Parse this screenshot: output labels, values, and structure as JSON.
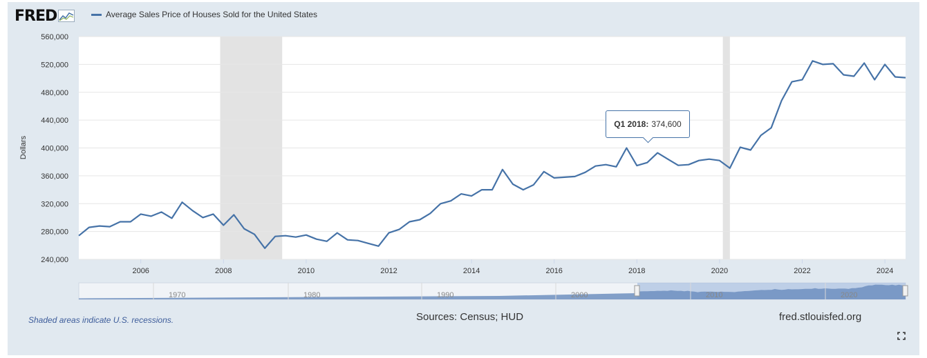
{
  "brand": {
    "logo_text": "FRED"
  },
  "legend": {
    "series_name": "Average Sales Price of Houses Sold for the United States"
  },
  "tooltip": {
    "date": "Q1 2018:",
    "value": "374,600"
  },
  "footer": {
    "recession_note": "Shaded areas indicate U.S. recessions.",
    "sources": "Sources: Census; HUD",
    "site": "fred.stlouisfed.org"
  },
  "navigator": {
    "ticks": [
      "1970",
      "1980",
      "1990",
      "2000",
      "2010",
      "2020"
    ]
  },
  "colors": {
    "line": "#4572a7",
    "recession": "#e3e3e3",
    "panel": "#e1e9f0",
    "navigator_fill": "#a8bfe0"
  },
  "icons": {
    "logo": "fred-graph-icon",
    "fullscreen": "fullscreen-icon"
  },
  "chart_data": {
    "type": "line",
    "title": "",
    "xlabel": "",
    "ylabel": "Dollars",
    "xlim": [
      2004.5,
      2024.5
    ],
    "ylim": [
      240000,
      560000
    ],
    "yticks": [
      240000,
      280000,
      320000,
      360000,
      400000,
      440000,
      480000,
      520000,
      560000
    ],
    "ytick_labels": [
      "240,000",
      "280,000",
      "320,000",
      "360,000",
      "400,000",
      "440,000",
      "480,000",
      "520,000",
      "560,000"
    ],
    "xticks": [
      2006,
      2008,
      2010,
      2012,
      2014,
      2016,
      2018,
      2020,
      2022,
      2024
    ],
    "xtick_labels": [
      "2006",
      "2008",
      "2010",
      "2012",
      "2014",
      "2016",
      "2018",
      "2020",
      "2022",
      "2024"
    ],
    "grid": true,
    "legend": "top-left",
    "recessions": [
      [
        2007.92,
        2009.42
      ],
      [
        2020.08,
        2020.25
      ]
    ],
    "series": [
      {
        "name": "Average Sales Price of Houses Sold for the United States",
        "x": [
          2004.5,
          2004.75,
          2005.0,
          2005.25,
          2005.5,
          2005.75,
          2006.0,
          2006.25,
          2006.5,
          2006.75,
          2007.0,
          2007.25,
          2007.5,
          2007.75,
          2008.0,
          2008.25,
          2008.5,
          2008.75,
          2009.0,
          2009.25,
          2009.5,
          2009.75,
          2010.0,
          2010.25,
          2010.5,
          2010.75,
          2011.0,
          2011.25,
          2011.5,
          2011.75,
          2012.0,
          2012.25,
          2012.5,
          2012.75,
          2013.0,
          2013.25,
          2013.5,
          2013.75,
          2014.0,
          2014.25,
          2014.5,
          2014.75,
          2015.0,
          2015.25,
          2015.5,
          2015.75,
          2016.0,
          2016.25,
          2016.5,
          2016.75,
          2017.0,
          2017.25,
          2017.5,
          2017.75,
          2018.0,
          2018.25,
          2018.5,
          2018.75,
          2019.0,
          2019.25,
          2019.5,
          2019.75,
          2020.0,
          2020.25,
          2020.5,
          2020.75,
          2021.0,
          2021.25,
          2021.5,
          2021.75,
          2022.0,
          2022.25,
          2022.5,
          2022.75,
          2023.0,
          2023.25,
          2023.5,
          2023.75,
          2024.0,
          2024.25,
          2024.5
        ],
        "y": [
          274000,
          286000,
          288000,
          287000,
          294000,
          294000,
          305000,
          302000,
          308000,
          299000,
          322000,
          310000,
          300000,
          305000,
          289000,
          304000,
          284000,
          276000,
          256000,
          273000,
          274000,
          272000,
          275000,
          269000,
          266000,
          278000,
          268000,
          267000,
          263000,
          259000,
          278000,
          283000,
          294000,
          297000,
          306000,
          320000,
          324000,
          334000,
          331000,
          340000,
          340000,
          369000,
          348000,
          340000,
          347000,
          366000,
          357000,
          358000,
          359000,
          365000,
          374000,
          376000,
          373000,
          400000,
          374600,
          379000,
          393000,
          384000,
          375000,
          376000,
          382000,
          384000,
          382000,
          371000,
          401000,
          397000,
          418000,
          429000,
          468000,
          495000,
          498000,
          525000,
          520000,
          521000,
          505000,
          503000,
          522000,
          498000,
          520000,
          502000,
          501000
        ]
      }
    ]
  }
}
